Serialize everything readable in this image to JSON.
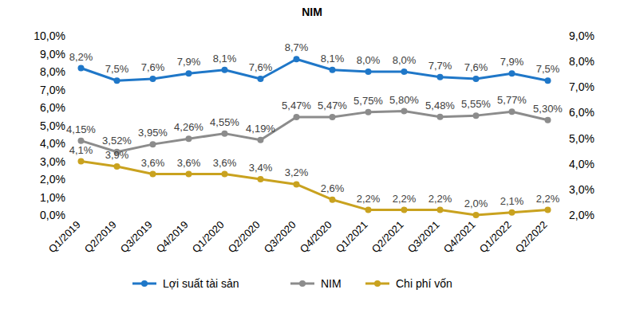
{
  "chart_data": {
    "type": "line",
    "title": "NIM",
    "categories": [
      "Q1/2019",
      "Q2/2019",
      "Q3/2019",
      "Q4/2019",
      "Q1/2020",
      "Q2/2020",
      "Q3/2020",
      "Q4/2020",
      "Q1/2021",
      "Q2/2021",
      "Q3/2021",
      "Q4/2021",
      "Q1/2022",
      "Q2/2022"
    ],
    "series": [
      {
        "name": "Lợi suất tài sản",
        "color": "#1f77c8",
        "marker": "circle",
        "values": [
          8.2,
          7.5,
          7.6,
          7.9,
          8.1,
          7.6,
          8.7,
          8.1,
          8.0,
          8.0,
          7.7,
          7.6,
          7.9,
          7.5
        ],
        "value_labels": [
          "8,2%",
          "7,5%",
          "7,6%",
          "7,9%",
          "8,1%",
          "7,6%",
          "8,7%",
          "8,1%",
          "8,0%",
          "8,0%",
          "7,7%",
          "7,6%",
          "7,9%",
          "7,5%"
        ]
      },
      {
        "name": "NIM",
        "color": "#8c8c8c",
        "marker": "circle",
        "values": [
          4.15,
          3.52,
          3.95,
          4.26,
          4.55,
          4.19,
          5.47,
          5.47,
          5.75,
          5.8,
          5.48,
          5.55,
          5.77,
          5.3
        ],
        "value_labels": [
          "4,15%",
          "3,52%",
          "3,95%",
          "4,26%",
          "4,55%",
          "4,19%",
          "5,47%",
          "5,47%",
          "5,75%",
          "5,80%",
          "5,48%",
          "5,55%",
          "5,77%",
          "5,30%"
        ]
      },
      {
        "name": "Chi phí vốn",
        "color": "#c9a21f",
        "marker": "circle",
        "axis": "y2",
        "values": [
          4.1,
          3.9,
          3.6,
          3.6,
          3.6,
          3.4,
          3.2,
          2.6,
          2.2,
          2.2,
          2.2,
          2.0,
          2.1,
          2.2
        ],
        "value_labels": [
          "4,1%",
          "3,9%",
          "3,6%",
          "3,6%",
          "3,6%",
          "3,4%",
          "3,2%",
          "2,6%",
          "2,2%",
          "2,2%",
          "2,2%",
          "2,0%",
          "2,1%",
          "2,2%"
        ]
      }
    ],
    "ylim": [
      0,
      10
    ],
    "yticks": [
      {
        "value": 0,
        "label": "0,0%"
      },
      {
        "value": 1,
        "label": "1,0%"
      },
      {
        "value": 2,
        "label": "2,0%"
      },
      {
        "value": 3,
        "label": "3,0%"
      },
      {
        "value": 4,
        "label": "4,0%"
      },
      {
        "value": 5,
        "label": "5,0%"
      },
      {
        "value": 6,
        "label": "6,0%"
      },
      {
        "value": 7,
        "label": "7,0%"
      },
      {
        "value": 8,
        "label": "8,0%"
      },
      {
        "value": 9,
        "label": "9,0%"
      },
      {
        "value": 10,
        "label": "10,0%"
      }
    ],
    "y2lim": [
      2,
      9
    ],
    "y2ticks": [
      {
        "value": 2,
        "label": "2,0%"
      },
      {
        "value": 3,
        "label": "3,0%"
      },
      {
        "value": 4,
        "label": "4,0%"
      },
      {
        "value": 5,
        "label": "5,0%"
      },
      {
        "value": 6,
        "label": "6,0%"
      },
      {
        "value": 7,
        "label": "7,0%"
      },
      {
        "value": 8,
        "label": "8,0%"
      },
      {
        "value": 9,
        "label": "9,0%"
      }
    ],
    "grid": false,
    "legend": "bottom",
    "data_labels": true
  }
}
